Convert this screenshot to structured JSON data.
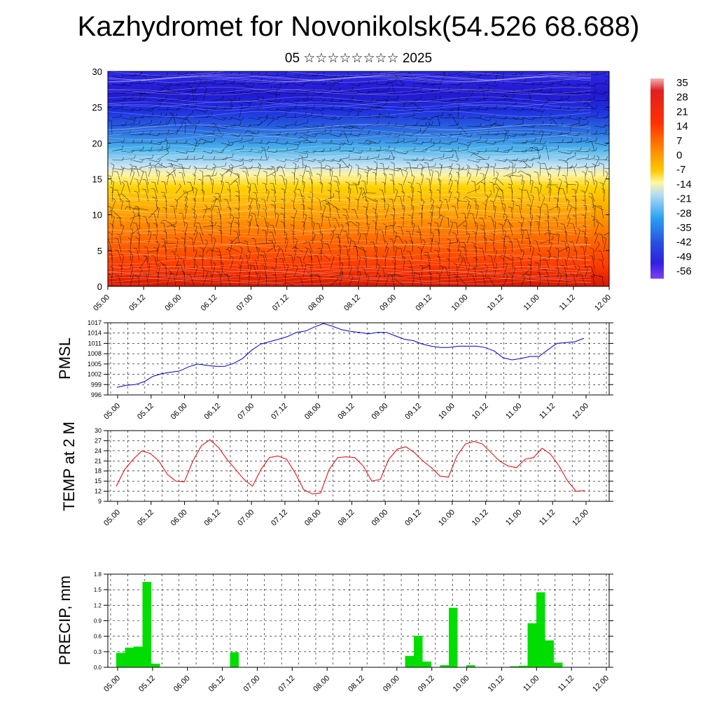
{
  "header": {
    "title": "Kazhydromet for Novonikolsk(54.526 68.688)",
    "subtitle": "05 ☆☆☆☆☆☆☆☆ 2025"
  },
  "colorbar": {
    "labels": [
      "35",
      "28",
      "21",
      "14",
      "7",
      "0",
      "-7",
      "-14",
      "-21",
      "-28",
      "-35",
      "-42",
      "-49",
      "-56"
    ]
  },
  "chart_data": [
    {
      "type": "heatmap",
      "title": "",
      "description": "temperature cross-section with wind barbs",
      "x_ticks": [
        "05.00",
        "05.12",
        "06.00",
        "06.12",
        "07.00",
        "07.12",
        "08.00",
        "08.12",
        "09.00",
        "09.12",
        "10.00",
        "10.12",
        "11.00",
        "11.12",
        "12.00"
      ],
      "y_ticks": [
        0,
        5,
        10,
        15,
        20,
        25,
        30
      ],
      "ylim": [
        0,
        30
      ],
      "color_range": [
        -56,
        35
      ]
    },
    {
      "type": "line",
      "ylabel": "PMSL",
      "ylim": [
        996,
        1017
      ],
      "y_ticks": [
        996,
        999,
        1002,
        1005,
        1008,
        1011,
        1014,
        1017
      ],
      "x_ticks": [
        "05.00",
        "05.12",
        "06.00",
        "06.12",
        "07.00",
        "07.12",
        "08.00",
        "08.12",
        "09.00",
        "09.12",
        "10.00",
        "10.12",
        "11.00",
        "11.12",
        "12.00"
      ],
      "color": "#0000cc",
      "values": [
        998.2,
        998.8,
        999.0,
        999.8,
        1001.4,
        1002.2,
        1002.6,
        1003.0,
        1004.2,
        1005.0,
        1004.6,
        1004.3,
        1004.3,
        1005.2,
        1006.6,
        1009.0,
        1010.8,
        1011.5,
        1012.2,
        1013.0,
        1014.2,
        1014.6,
        1015.8,
        1016.8,
        1016.0,
        1015.0,
        1014.5,
        1014.2,
        1013.8,
        1014.2,
        1014.2,
        1013.2,
        1012.2,
        1011.8,
        1010.8,
        1010.2,
        1009.8,
        1009.8,
        1010.2,
        1010.2,
        1010.2,
        1009.8,
        1008.8,
        1006.8,
        1006.2,
        1006.6,
        1007.2,
        1007.2,
        1009.2,
        1011.0,
        1011.2,
        1011.5,
        1012.5
      ]
    },
    {
      "type": "line",
      "ylabel": "TEMP at 2 M",
      "ylim": [
        9,
        30
      ],
      "y_ticks": [
        9,
        12,
        15,
        18,
        21,
        24,
        27,
        30
      ],
      "x_ticks": [
        "05.00",
        "05.12",
        "06.00",
        "06.12",
        "07.00",
        "07.12",
        "08.00",
        "08.12",
        "09.00",
        "09.12",
        "10.00",
        "10.12",
        "11.00",
        "11.12",
        "12.00"
      ],
      "color": "#dd0000",
      "values": [
        13.5,
        18.5,
        21.5,
        24.0,
        23.2,
        21.0,
        17.0,
        15.0,
        14.8,
        21.0,
        25.5,
        27.3,
        25.0,
        21.5,
        18.5,
        15.5,
        13.5,
        18.5,
        22.0,
        22.5,
        21.5,
        17.5,
        12.5,
        11.2,
        11.5,
        18.5,
        22.0,
        22.2,
        22.0,
        19.5,
        15.0,
        15.5,
        21.5,
        24.5,
        25.2,
        23.5,
        21.0,
        19.0,
        16.5,
        16.2,
        22.5,
        26.0,
        26.8,
        26.0,
        23.5,
        21.0,
        19.5,
        19.0,
        21.5,
        22.0,
        24.8,
        23.0,
        19.5,
        15.0,
        12.0,
        12.2
      ]
    },
    {
      "type": "bar",
      "ylabel": "PRECIP, mm",
      "ylim": [
        0,
        1.8
      ],
      "y_ticks": [
        "0.0",
        "0.3",
        "0.6",
        "0.9",
        "1.2",
        "1.5",
        "1.8"
      ],
      "x_ticks": [
        "05.00",
        "05.12",
        "06.00",
        "06.12",
        "07.00",
        "07.12",
        "08.00",
        "08.12",
        "09.00",
        "09.12",
        "10.00",
        "10.12",
        "11.00",
        "11.12",
        "12.00"
      ],
      "color": "#00dd00",
      "values": [
        0.28,
        0.38,
        0.4,
        1.65,
        0.07,
        0,
        0,
        0,
        0,
        0,
        0,
        0,
        0,
        0.29,
        0,
        0,
        0,
        0,
        0,
        0,
        0,
        0,
        0,
        0,
        0,
        0,
        0,
        0,
        0,
        0,
        0,
        0,
        0,
        0.22,
        0.61,
        0.11,
        0,
        0.04,
        1.15,
        0,
        0.04,
        0,
        0,
        0,
        0,
        0.02,
        0.03,
        0.85,
        1.45,
        0.52,
        0.09,
        0,
        0,
        0,
        0,
        0
      ]
    }
  ]
}
